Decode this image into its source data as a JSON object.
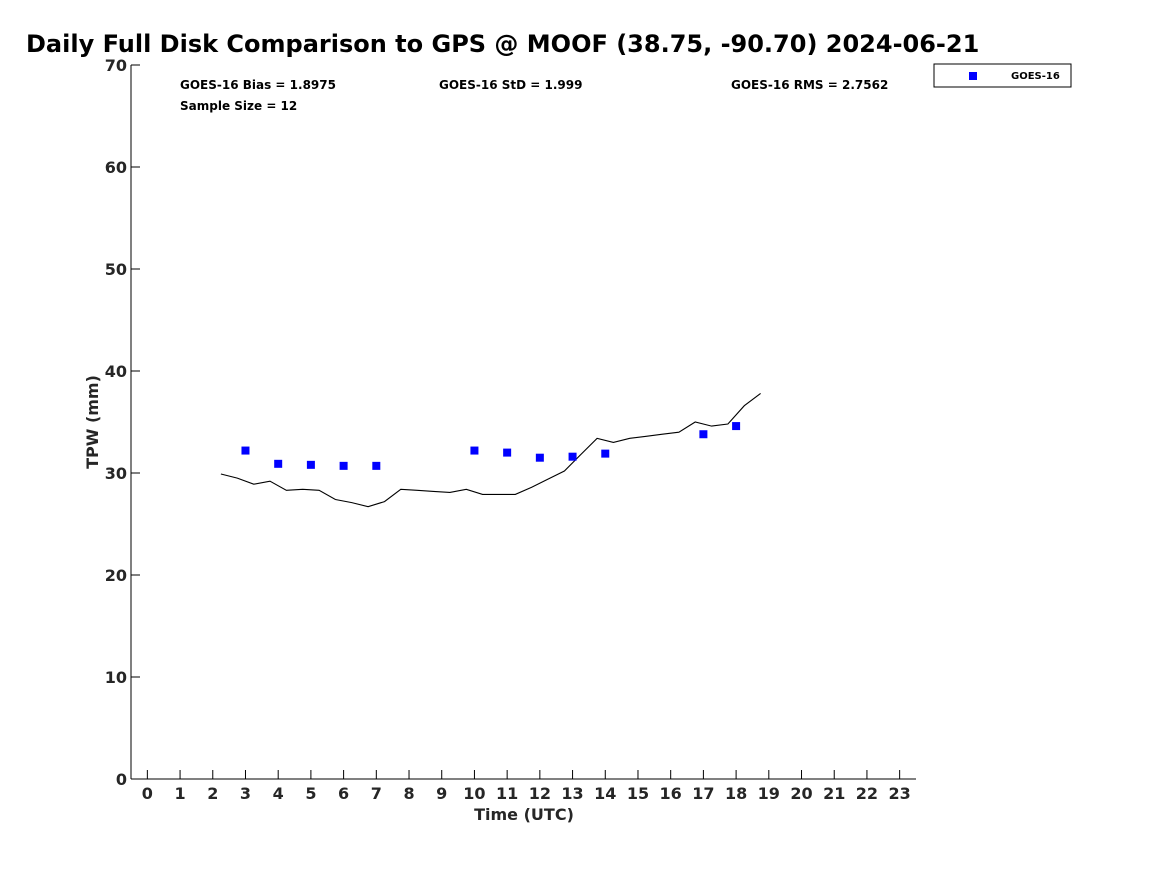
{
  "chart_data": {
    "type": "scatter",
    "title": "Daily Full Disk Comparison to GPS @ MOOF (38.75, -90.70) 2024-06-21",
    "xlabel": "Time (UTC)",
    "ylabel": "TPW (mm)",
    "xlim": [
      -0.5,
      23.5
    ],
    "ylim": [
      0,
      70
    ],
    "x_ticks": [
      "0",
      "1",
      "2",
      "3",
      "4",
      "5",
      "6",
      "7",
      "8",
      "9",
      "10",
      "11",
      "12",
      "13",
      "14",
      "15",
      "16",
      "17",
      "18",
      "19",
      "20",
      "21",
      "22",
      "23"
    ],
    "y_ticks": [
      "0",
      "10",
      "20",
      "30",
      "40",
      "50",
      "60",
      "70"
    ],
    "grid": false,
    "legend_position": "top-right, outside plot",
    "stats": {
      "bias": "GOES-16 Bias = 1.8975",
      "std": "GOES-16 StD = 1.999",
      "rms": "GOES-16 RMS = 2.7562",
      "sample_size": "Sample Size = 12"
    },
    "series": [
      {
        "name": "GOES-16",
        "kind": "scatter",
        "color": "#0000ff",
        "marker": "square",
        "x": [
          3.0,
          4.0,
          5.0,
          6.0,
          7.0,
          10.0,
          11.0,
          12.0,
          13.0,
          14.0,
          17.0,
          18.0
        ],
        "y": [
          32.2,
          30.9,
          30.8,
          30.7,
          30.7,
          32.2,
          32.0,
          31.5,
          31.6,
          31.9,
          33.8,
          34.6
        ]
      },
      {
        "kind": "line",
        "color": "#000000",
        "x": [
          2.25,
          2.75,
          3.25,
          3.75,
          4.25,
          4.75,
          5.25,
          5.75,
          6.25,
          6.75,
          7.25,
          7.75,
          8.25,
          8.75,
          9.25,
          9.75,
          10.25,
          10.75,
          11.25,
          11.75,
          12.25,
          12.75,
          13.25,
          13.75,
          14.25,
          14.75,
          15.25,
          15.75,
          16.25,
          16.75,
          17.25,
          17.75,
          18.25,
          18.75
        ],
        "y": [
          29.9,
          29.5,
          28.9,
          29.2,
          28.3,
          28.4,
          28.3,
          27.4,
          27.1,
          26.7,
          27.2,
          28.4,
          28.3,
          28.2,
          28.1,
          28.4,
          27.9,
          27.9,
          27.9,
          28.6,
          29.4,
          30.2,
          31.8,
          33.4,
          33.0,
          33.4,
          33.6,
          33.8,
          34.0,
          35.0,
          34.6,
          34.8,
          36.6,
          37.8
        ]
      }
    ]
  }
}
